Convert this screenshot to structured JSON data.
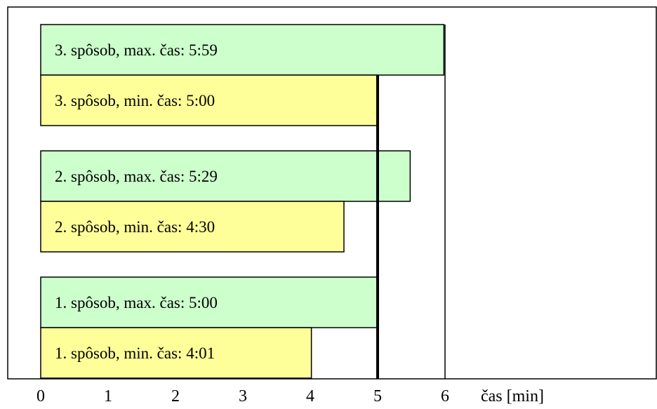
{
  "chart_data": {
    "type": "bar",
    "orientation": "horizontal",
    "xlabel": "čas [min]",
    "xlim": [
      0,
      6
    ],
    "xticks": [
      "0",
      "1",
      "2",
      "3",
      "4",
      "5",
      "6"
    ],
    "reference_lines": [
      5,
      6
    ],
    "colors": {
      "max": "#ccffcc",
      "min": "#ffff99",
      "border": "#000000"
    },
    "bars": [
      {
        "label": "3. spôsob, max. čas: 5:59",
        "value": 5.983,
        "kind": "max"
      },
      {
        "label": "3. spôsob, min. čas: 5:00",
        "value": 5.0,
        "kind": "min"
      },
      {
        "label": "2. spôsob, max. čas: 5:29",
        "value": 5.483,
        "kind": "max"
      },
      {
        "label": "2. spôsob, min. čas: 4:30",
        "value": 4.5,
        "kind": "min"
      },
      {
        "label": "1. spôsob, max. čas: 5:00",
        "value": 5.0,
        "kind": "max"
      },
      {
        "label": "1. spôsob, min. čas: 4:01",
        "value": 4.017,
        "kind": "min"
      }
    ]
  }
}
